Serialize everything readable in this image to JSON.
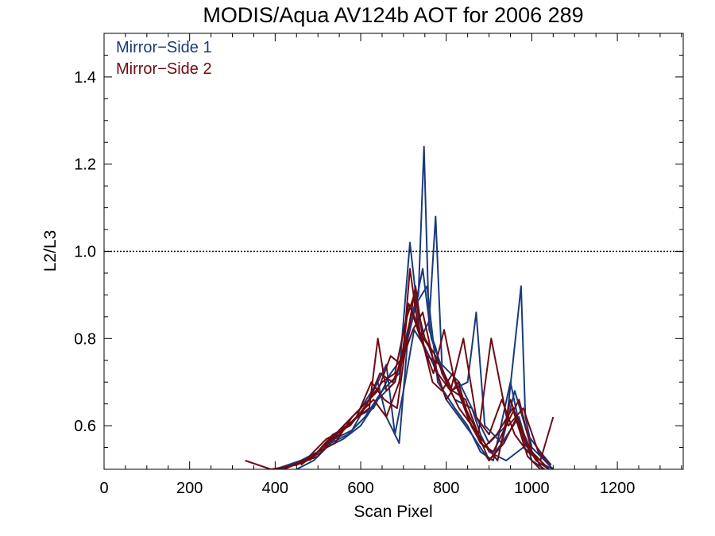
{
  "chart_data": {
    "type": "line",
    "title": "MODIS/Aqua AV124b AOT for 2006 289",
    "xlabel": "Scan Pixel",
    "ylabel": "L2/L3",
    "xlim": [
      0,
      1354
    ],
    "ylim": [
      0.5,
      1.5
    ],
    "xticks": [
      0,
      200,
      400,
      600,
      800,
      1000,
      1200
    ],
    "yticks": [
      0.6,
      0.8,
      1.0,
      1.2,
      1.4
    ],
    "xtick_labels": [
      "0",
      "200",
      "400",
      "600",
      "800",
      "1000",
      "1200"
    ],
    "ytick_labels": [
      "0.6",
      "0.8",
      "1.0",
      "1.2",
      "1.4"
    ],
    "reference_line": {
      "y": 1.0,
      "style": "dotted"
    },
    "legend": {
      "placement": "top-left",
      "entries": [
        "Mirror−Side 1",
        "Mirror−Side 2"
      ]
    },
    "colors": {
      "mirror_side_1": "#1a3a7a",
      "mirror_side_2": "#6e0a12"
    },
    "series": [
      {
        "name": "Mirror−Side 1",
        "color": "#1a3a7a",
        "lines": [
          {
            "x": [
              380,
              440,
              480,
              520,
              560,
              600,
              640,
              680,
              700,
              720,
              735,
              748,
              760,
              775,
              790,
              820,
              860,
              880,
              900,
              940,
              980,
              1010,
              1030,
              1050
            ],
            "y": [
              0.49,
              0.51,
              0.53,
              0.55,
              0.57,
              0.6,
              0.66,
              0.7,
              0.78,
              0.86,
              0.9,
              1.24,
              0.82,
              0.78,
              0.72,
              0.66,
              0.64,
              0.58,
              0.54,
              0.52,
              0.55,
              0.53,
              0.51,
              0.5
            ]
          },
          {
            "x": [
              450,
              490,
              530,
              570,
              610,
              650,
              690,
              715,
              740,
              760,
              775,
              790,
              830,
              870,
              900,
              940,
              975,
              985,
              1000,
              1030,
              1050
            ],
            "y": [
              0.5,
              0.52,
              0.56,
              0.58,
              0.62,
              0.68,
              0.72,
              1.02,
              0.8,
              0.84,
              1.08,
              0.74,
              0.7,
              0.62,
              0.56,
              0.6,
              0.92,
              0.62,
              0.55,
              0.52,
              0.5
            ]
          },
          {
            "x": [
              470,
              510,
              550,
              590,
              630,
              670,
              700,
              720,
              745,
              765,
              780,
              810,
              850,
              870,
              890,
              930,
              960,
              990,
              1020,
              1045
            ],
            "y": [
              0.52,
              0.54,
              0.58,
              0.62,
              0.64,
              0.72,
              0.76,
              0.84,
              0.96,
              0.8,
              0.76,
              0.68,
              0.7,
              0.86,
              0.6,
              0.56,
              0.68,
              0.58,
              0.54,
              0.51
            ]
          },
          {
            "x": [
              400,
              460,
              520,
              560,
              600,
              640,
              660,
              690,
              710,
              730,
              755,
              780,
              820,
              850,
              880,
              910,
              950,
              980,
              1010,
              1040
            ],
            "y": [
              0.5,
              0.52,
              0.55,
              0.6,
              0.64,
              0.7,
              0.62,
              0.56,
              0.8,
              0.88,
              0.92,
              0.7,
              0.64,
              0.6,
              0.54,
              0.52,
              0.7,
              0.56,
              0.53,
              0.5
            ]
          },
          {
            "x": [
              500,
              540,
              580,
              620,
              660,
              680,
              700,
              725,
              750,
              770,
              800,
              830,
              860,
              900,
              930,
              970,
              1000,
              1030
            ],
            "y": [
              0.53,
              0.57,
              0.59,
              0.66,
              0.74,
              0.58,
              0.68,
              0.82,
              0.78,
              0.74,
              0.66,
              0.62,
              0.58,
              0.52,
              0.56,
              0.62,
              0.52,
              0.5
            ]
          }
        ]
      },
      {
        "name": "Mirror−Side 2",
        "color": "#6e0a12",
        "lines": [
          {
            "x": [
              330,
              390,
              450,
              500,
              540,
              580,
              620,
              640,
              660,
              680,
              700,
              715,
              735,
              760,
              780,
              810,
              840,
              870,
              900,
              930,
              960,
              990,
              1020,
              1050
            ],
            "y": [
              0.52,
              0.5,
              0.51,
              0.53,
              0.58,
              0.61,
              0.64,
              0.8,
              0.68,
              0.7,
              0.78,
              0.96,
              0.82,
              0.78,
              0.72,
              0.68,
              0.8,
              0.62,
              0.58,
              0.66,
              0.58,
              0.54,
              0.52,
              0.62
            ]
          },
          {
            "x": [
              460,
              500,
              540,
              580,
              620,
              650,
              680,
              705,
              725,
              750,
              775,
              800,
              830,
              860,
              890,
              920,
              950,
              985,
              1010,
              1040
            ],
            "y": [
              0.51,
              0.54,
              0.56,
              0.62,
              0.66,
              0.7,
              0.72,
              0.84,
              0.9,
              0.8,
              0.76,
              0.7,
              0.64,
              0.6,
              0.56,
              0.52,
              0.66,
              0.56,
              0.52,
              0.5
            ]
          },
          {
            "x": [
              480,
              520,
              560,
              600,
              640,
              670,
              695,
              720,
              740,
              770,
              795,
              820,
              850,
              880,
              910,
              940,
              970,
              1000,
              1030
            ],
            "y": [
              0.52,
              0.56,
              0.6,
              0.64,
              0.68,
              0.76,
              0.74,
              0.86,
              0.8,
              0.72,
              0.82,
              0.7,
              0.62,
              0.56,
              0.54,
              0.6,
              0.66,
              0.54,
              0.51
            ]
          },
          {
            "x": [
              420,
              470,
              520,
              560,
              600,
              630,
              660,
              690,
              712,
              730,
              755,
              785,
              815,
              845,
              875,
              905,
              945,
              980,
              1015,
              1045
            ],
            "y": [
              0.5,
              0.52,
              0.57,
              0.59,
              0.63,
              0.66,
              0.62,
              0.7,
              0.88,
              0.84,
              0.76,
              0.74,
              0.68,
              0.66,
              0.58,
              0.8,
              0.6,
              0.64,
              0.54,
              0.51
            ]
          },
          {
            "x": [
              510,
              550,
              590,
              625,
              655,
              685,
              708,
              728,
              748,
              768,
              790,
              815,
              845,
              875,
              900,
              935,
              965,
              995,
              1025
            ],
            "y": [
              0.55,
              0.58,
              0.62,
              0.7,
              0.66,
              0.64,
              0.8,
              0.92,
              0.78,
              0.7,
              0.68,
              0.72,
              0.64,
              0.58,
              0.52,
              0.56,
              0.62,
              0.55,
              0.5
            ]
          },
          {
            "x": [
              440,
              490,
              535,
              575,
              615,
              645,
              675,
              700,
              722,
              745,
              772,
              800,
              828,
              858,
              888,
              918,
              955,
              990,
              1020
            ],
            "y": [
              0.51,
              0.53,
              0.58,
              0.6,
              0.65,
              0.72,
              0.7,
              0.76,
              0.82,
              0.86,
              0.74,
              0.66,
              0.7,
              0.6,
              0.55,
              0.58,
              0.64,
              0.53,
              0.5
            ]
          }
        ]
      }
    ]
  }
}
